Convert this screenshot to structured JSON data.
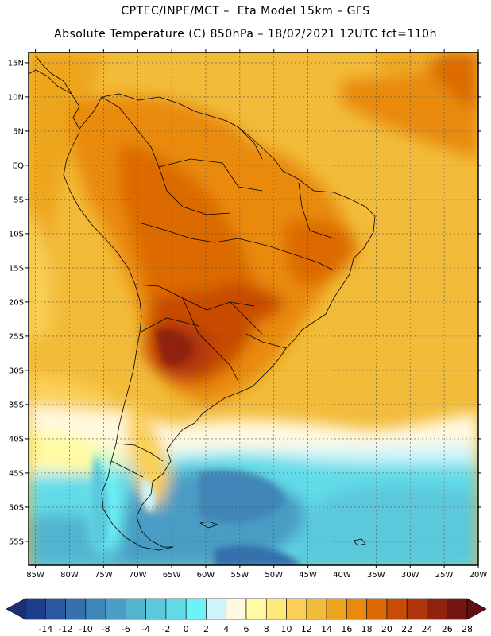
{
  "title": {
    "line1": "CPTEC/INPE/MCT –  Eta Model 15km – GFS",
    "line2": "Absolute Temperature (C) 850hPa – 18/02/2021 12UTC fct=110h"
  },
  "map": {
    "lon_labels": [
      "85W",
      "80W",
      "75W",
      "70W",
      "65W",
      "60W",
      "55W",
      "50W",
      "45W",
      "40W",
      "35W",
      "30W",
      "25W",
      "20W"
    ],
    "lat_labels": [
      "15N",
      "10N",
      "5N",
      "EQ",
      "5S",
      "10S",
      "15S",
      "20S",
      "25S",
      "30S",
      "35S",
      "40S",
      "45S",
      "50S",
      "55S"
    ],
    "lon_values": [
      -85,
      -80,
      -75,
      -70,
      -65,
      -60,
      -55,
      -50,
      -45,
      -40,
      -35,
      -30,
      -25,
      -20
    ],
    "lat_values": [
      15,
      10,
      5,
      0,
      -5,
      -10,
      -15,
      -20,
      -25,
      -30,
      -35,
      -40,
      -45,
      -50,
      -55
    ],
    "lon_range": [
      -86,
      -20
    ],
    "lat_range": [
      -58.5,
      16.5
    ]
  },
  "colorbar": {
    "labels": [
      "-14",
      "-12",
      "-10",
      "-8",
      "-6",
      "-4",
      "-2",
      "0",
      "2",
      "4",
      "6",
      "8",
      "10",
      "12",
      "14",
      "16",
      "18",
      "20",
      "22",
      "24",
      "26",
      "28"
    ],
    "colors": [
      "#1e3c8c",
      "#2a579f",
      "#3570ad",
      "#3f86b8",
      "#4a9dc4",
      "#53b4d0",
      "#5bc8dc",
      "#62dbe8",
      "#6cf3f7",
      "#cdf4fb",
      "#fff9e1",
      "#fffaa3",
      "#fde979",
      "#fad058",
      "#f2bb3a",
      "#eda51d",
      "#e98a0c",
      "#dc6a06",
      "#c84b06",
      "#b0340c",
      "#902210",
      "#74160f"
    ]
  }
}
